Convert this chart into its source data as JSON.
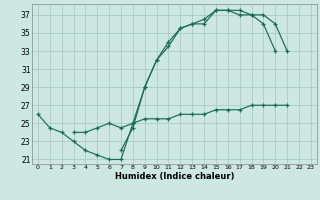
{
  "title": "",
  "xlabel": "Humidex (Indice chaleur)",
  "background_color": "#cce8e0",
  "grid_color": "#aaccc4",
  "line_color": "#1a6b5a",
  "xlim": [
    -0.5,
    23.5
  ],
  "ylim": [
    20.5,
    38.2
  ],
  "xticks": [
    0,
    1,
    2,
    3,
    4,
    5,
    6,
    7,
    8,
    9,
    10,
    11,
    12,
    13,
    14,
    15,
    16,
    17,
    18,
    19,
    20,
    21,
    22,
    23
  ],
  "yticks": [
    21,
    23,
    25,
    27,
    29,
    31,
    33,
    35,
    37
  ],
  "y1": [
    26,
    24.5,
    24,
    23,
    22,
    21.5,
    21,
    21,
    25,
    29,
    32,
    34,
    35.5,
    36,
    36.5,
    37.5,
    37.5,
    37,
    37,
    37,
    36,
    33,
    null,
    null
  ],
  "y2": [
    null,
    null,
    null,
    24,
    24,
    24.5,
    25,
    24.5,
    25,
    25.5,
    25.5,
    25.5,
    26,
    26,
    26,
    26.5,
    26.5,
    26.5,
    27,
    27,
    27,
    27,
    null,
    null
  ],
  "y3": [
    null,
    null,
    null,
    null,
    null,
    null,
    null,
    22,
    24.5,
    29,
    32,
    33.5,
    35.5,
    36,
    36,
    37.5,
    37.5,
    37.5,
    37,
    36,
    33,
    null,
    null,
    null
  ]
}
